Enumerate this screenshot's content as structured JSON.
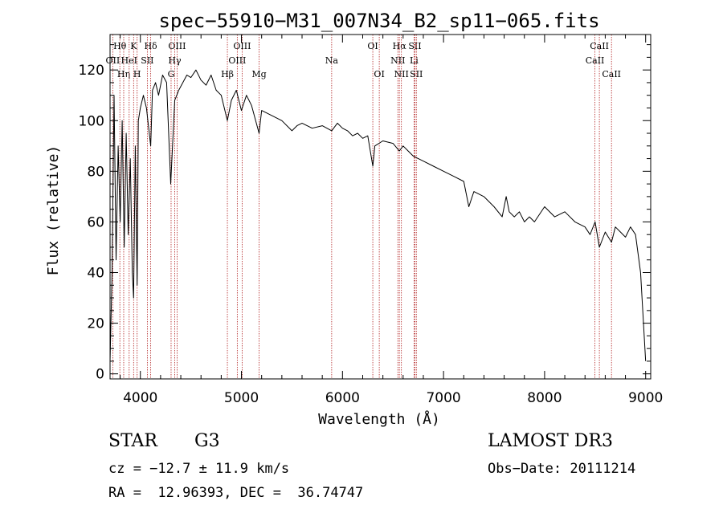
{
  "chart_data": {
    "type": "line",
    "title": "spec−55910−M31_007N34_B2_sp11−065.fits",
    "xlabel": "Wavelength (Å)",
    "ylabel": "Flux (relative)",
    "xlim": [
      3700,
      9050
    ],
    "ylim": [
      -2,
      134
    ],
    "xticks": [
      4000,
      5000,
      6000,
      7000,
      8000,
      9000
    ],
    "yticks": [
      0,
      20,
      40,
      60,
      80,
      100,
      120
    ],
    "grid": false,
    "line_color": "#000000",
    "marker_color": "#b22222",
    "series": [
      {
        "name": "flux",
        "x": [
          3700,
          3720,
          3740,
          3760,
          3780,
          3800,
          3820,
          3840,
          3860,
          3880,
          3900,
          3920,
          3933,
          3950,
          3968,
          3980,
          4000,
          4030,
          4060,
          4102,
          4120,
          4150,
          4180,
          4220,
          4260,
          4300,
          4340,
          4380,
          4420,
          4460,
          4500,
          4550,
          4600,
          4650,
          4700,
          4750,
          4800,
          4861,
          4900,
          4950,
          5000,
          5050,
          5100,
          5175,
          5200,
          5300,
          5400,
          5500,
          5550,
          5600,
          5700,
          5800,
          5893,
          5950,
          6000,
          6050,
          6100,
          6150,
          6200,
          6250,
          6300,
          6320,
          6400,
          6500,
          6563,
          6600,
          6700,
          6800,
          6900,
          7000,
          7100,
          7200,
          7250,
          7300,
          7400,
          7500,
          7580,
          7620,
          7650,
          7700,
          7750,
          7800,
          7850,
          7900,
          8000,
          8100,
          8200,
          8300,
          8400,
          8450,
          8500,
          8542,
          8600,
          8662,
          8700,
          8750,
          8800,
          8850,
          8900,
          8950,
          9000
        ],
        "values": [
          5,
          40,
          110,
          45,
          90,
          60,
          100,
          50,
          95,
          55,
          85,
          40,
          30,
          90,
          35,
          100,
          105,
          110,
          105,
          90,
          112,
          115,
          110,
          118,
          115,
          75,
          108,
          112,
          115,
          118,
          117,
          120,
          116,
          114,
          118,
          112,
          110,
          100,
          108,
          112,
          104,
          110,
          106,
          95,
          104,
          102,
          100,
          96,
          98,
          99,
          97,
          98,
          96,
          99,
          97,
          96,
          94,
          95,
          93,
          94,
          82,
          90,
          92,
          91,
          88,
          90,
          86,
          84,
          82,
          80,
          78,
          76,
          66,
          72,
          70,
          66,
          62,
          70,
          64,
          62,
          64,
          60,
          62,
          60,
          66,
          62,
          64,
          60,
          58,
          55,
          60,
          50,
          56,
          52,
          58,
          56,
          54,
          58,
          55,
          40,
          5
        ]
      }
    ],
    "line_markers": [
      {
        "label": "Hθ",
        "x": 3797,
        "row": 1
      },
      {
        "label": "OII",
        "x": 3727,
        "row": 2
      },
      {
        "label": "Hη",
        "x": 3835,
        "row": 3
      },
      {
        "label": "HeI",
        "x": 3889,
        "row": 2
      },
      {
        "label": "K",
        "x": 3933,
        "row": 1
      },
      {
        "label": "H",
        "x": 3968,
        "row": 3
      },
      {
        "label": "SII",
        "x": 4069,
        "row": 2
      },
      {
        "label": "Hδ",
        "x": 4102,
        "row": 1
      },
      {
        "label": "OIII",
        "x": 4363,
        "row": 1
      },
      {
        "label": "Hγ",
        "x": 4340,
        "row": 2
      },
      {
        "label": "G",
        "x": 4304,
        "row": 3
      },
      {
        "label": "Hβ",
        "x": 4861,
        "row": 3
      },
      {
        "label": "OIII",
        "x": 5007,
        "row": 1
      },
      {
        "label": "OIII",
        "x": 4959,
        "row": 2
      },
      {
        "label": "Mg",
        "x": 5175,
        "row": 3
      },
      {
        "label": "Na",
        "x": 5893,
        "row": 2
      },
      {
        "label": "OI",
        "x": 6300,
        "row": 1
      },
      {
        "label": "OI",
        "x": 6364,
        "row": 3
      },
      {
        "label": "Hα",
        "x": 6563,
        "row": 1
      },
      {
        "label": "NII",
        "x": 6548,
        "row": 2
      },
      {
        "label": "NII",
        "x": 6583,
        "row": 3
      },
      {
        "label": "SII",
        "x": 6717,
        "row": 1
      },
      {
        "label": "Li",
        "x": 6708,
        "row": 2
      },
      {
        "label": "SII",
        "x": 6731,
        "row": 3
      },
      {
        "label": "CaII",
        "x": 8542,
        "row": 1
      },
      {
        "label": "CaII",
        "x": 8498,
        "row": 2
      },
      {
        "label": "CaII",
        "x": 8662,
        "row": 3
      }
    ]
  },
  "info": {
    "class_label": "STAR",
    "subclass": "G3",
    "survey": "LAMOST DR3",
    "redshift_text": "cz = −12.7 ± 11.9 km/s",
    "obs_date_text": "Obs−Date: 20111214",
    "coords_text": "RA =  12.96393, DEC =  36.74747"
  }
}
